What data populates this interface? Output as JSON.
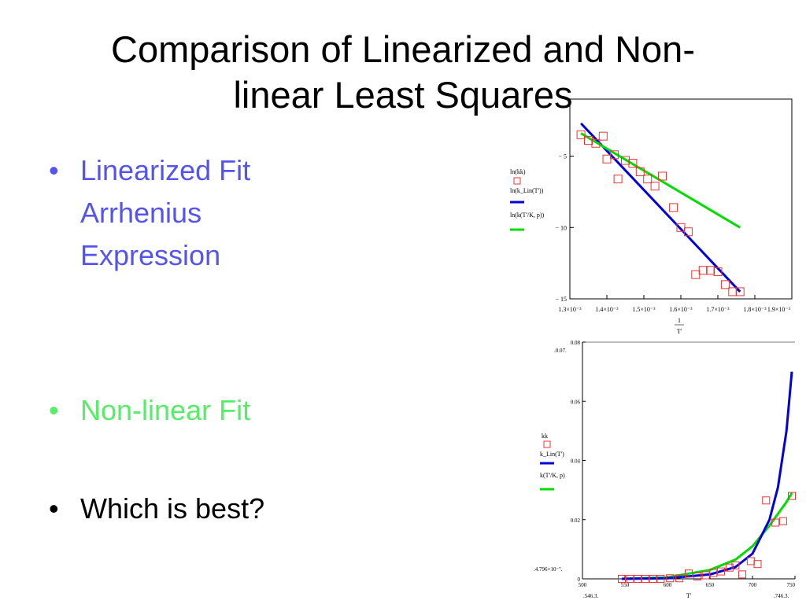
{
  "slide": {
    "title_line1": "Comparison of Linearized and Non-",
    "title_line2": "linear Least Squares",
    "bullets": [
      {
        "text": "Linearized Fit Arrhenius Expression",
        "color": "#5555ee"
      },
      {
        "text": "Non-linear Fit",
        "color": "#55ee66"
      },
      {
        "text": "Which is best?",
        "color": "#000000"
      }
    ],
    "bullet_glyph": "•"
  },
  "chart_data": [
    {
      "type": "scatter",
      "legend": [
        "ln(kk)",
        "ln(k_Lin(T'))",
        "ln(k(T'/K, p))"
      ],
      "xticks": [
        "1.3×10⁻³",
        "1.4×10⁻³",
        "1.5×10⁻³",
        "1.6×10⁻³",
        "1.7×10⁻³",
        "1.8×10⁻³",
        "1.9×10⁻³"
      ],
      "yticks": [
        "− 5",
        "− 10",
        "− 15"
      ],
      "xlabel_top": "1",
      "xlabel_bottom": "T'",
      "xlim": [
        0.0013,
        0.0019
      ],
      "ylim": [
        -15,
        -1
      ],
      "series": [
        {
          "name": "ln(kk)",
          "color": "#ee3333",
          "marker": "square",
          "x": [
            0.00133,
            0.00135,
            0.00137,
            0.00139,
            0.0014,
            0.00142,
            0.00143,
            0.00145,
            0.00147,
            0.00149,
            0.00151,
            0.00153,
            0.00155,
            0.00158,
            0.0016,
            0.00162,
            0.00164,
            0.00166,
            0.00168,
            0.0017,
            0.00172,
            0.00174,
            0.00176
          ],
          "y": [
            -3.5,
            -3.9,
            -4.1,
            -3.6,
            -5.2,
            -4.9,
            -6.6,
            -5.3,
            -5.5,
            -6.1,
            -6.6,
            -7.1,
            -6.4,
            -8.6,
            -10,
            -10.3,
            -13.3,
            -13,
            -13,
            -13.1,
            -14,
            -14.5,
            -14.5
          ]
        },
        {
          "name": "ln(k_Lin(T'))",
          "color": "#0000dd",
          "x": [
            0.00133,
            0.00176
          ],
          "y": [
            -2.7,
            -14.5
          ]
        },
        {
          "name": "ln(k(T'/K, p))",
          "color": "#00dd00",
          "x": [
            0.00133,
            0.00176
          ],
          "y": [
            -3.4,
            -10
          ]
        }
      ]
    },
    {
      "type": "scatter",
      "legend": [
        "kk",
        "k_Lin(T')",
        "k(T'/K, p)"
      ],
      "xticks": [
        "500",
        "550",
        "600",
        "650",
        "700",
        "750"
      ],
      "yticks": [
        "0",
        "0.02",
        "0.04",
        "0.06",
        "0.08"
      ],
      "xlim": [
        500,
        750
      ],
      "ylim": [
        0,
        0.08
      ],
      "xlabel": "T'",
      "range_labels": {
        "ymax": ".0.07.",
        "ymin": ".4.796×10⁻⁷.",
        "xmin": ".546.3.",
        "xmax": ".746.3."
      },
      "series": [
        {
          "name": "kk",
          "color": "#ee3333",
          "marker": "square",
          "x": [
            546.3,
            556,
            565,
            574,
            583,
            592,
            603,
            614,
            625,
            635,
            645,
            654,
            663,
            673,
            680,
            688,
            698,
            706,
            716,
            727,
            736,
            746.3
          ],
          "y": [
            0,
            0,
            0,
            0,
            0,
            0,
            0.0002,
            0.0002,
            0.0018,
            0.0008,
            0.0012,
            0.002,
            0.0025,
            0.0038,
            0.0045,
            0.0015,
            0.006,
            0.005,
            0.0265,
            0.019,
            0.0195,
            0.028
          ]
        },
        {
          "name": "k_Lin(T')",
          "color": "#0000dd",
          "x": [
            546.3,
            600,
            650,
            680,
            700,
            720,
            730,
            740,
            746.3
          ],
          "y": [
            0,
            0.0002,
            0.0015,
            0.004,
            0.0085,
            0.02,
            0.031,
            0.05,
            0.07
          ]
        },
        {
          "name": "k(T'/K, p)",
          "color": "#00dd00",
          "x": [
            546.3,
            600,
            650,
            680,
            700,
            720,
            730,
            740,
            746.3
          ],
          "y": [
            0,
            0.0005,
            0.003,
            0.0065,
            0.011,
            0.018,
            0.022,
            0.026,
            0.029
          ]
        }
      ]
    }
  ]
}
